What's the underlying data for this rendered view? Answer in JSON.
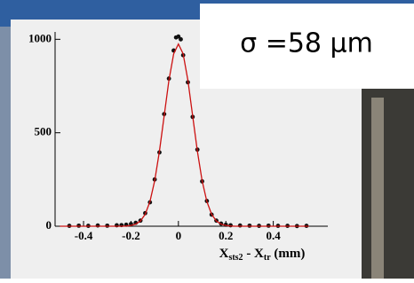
{
  "chart_data": {
    "type": "scatter",
    "annotation": "σ =58 μm",
    "xlabel": [
      "X",
      "sts2",
      " - X",
      "tr",
      " (mm)"
    ],
    "xlim": [
      -0.52,
      0.63
    ],
    "ylim": [
      0,
      1030
    ],
    "xticks": [
      -0.4,
      -0.2,
      0,
      0.2,
      0.4
    ],
    "yticks": [
      0,
      500,
      1000
    ],
    "series": [
      {
        "color": "#111111",
        "marker": "point",
        "x": [
          -0.46,
          -0.42,
          -0.38,
          -0.34,
          -0.3,
          -0.26,
          -0.24,
          -0.22,
          -0.2,
          -0.18,
          -0.16,
          -0.14,
          -0.12,
          -0.1,
          -0.08,
          -0.06,
          -0.04,
          -0.02,
          -0.01,
          0,
          0.01,
          0.02,
          0.04,
          0.06,
          0.08,
          0.1,
          0.12,
          0.14,
          0.16,
          0.18,
          0.2,
          0.22,
          0.26,
          0.3,
          0.34,
          0.38,
          0.42,
          0.46,
          0.5,
          0.54
        ],
        "values": [
          2,
          3,
          2,
          4,
          3,
          5,
          6,
          8,
          12,
          18,
          30,
          70,
          128,
          250,
          395,
          600,
          790,
          940,
          1010,
          1015,
          1000,
          915,
          770,
          585,
          410,
          240,
          135,
          62,
          30,
          14,
          8,
          5,
          4,
          3,
          2,
          3,
          2,
          2,
          1,
          2
        ]
      },
      {
        "color": "#cc1111",
        "marker": "line",
        "x": [
          -0.5,
          -0.24,
          -0.22,
          -0.2,
          -0.18,
          -0.16,
          -0.14,
          -0.12,
          -0.1,
          -0.08,
          -0.06,
          -0.04,
          -0.02,
          0,
          0.02,
          0.04,
          0.06,
          0.08,
          0.1,
          0.12,
          0.14,
          0.16,
          0.18,
          0.2,
          0.22,
          0.24,
          0.55
        ],
        "values": [
          0,
          0,
          1,
          4,
          11,
          28,
          64,
          132,
          243,
          401,
          591,
          781,
          922,
          975,
          922,
          781,
          591,
          401,
          243,
          132,
          64,
          28,
          11,
          4,
          1,
          0,
          0
        ]
      }
    ]
  }
}
